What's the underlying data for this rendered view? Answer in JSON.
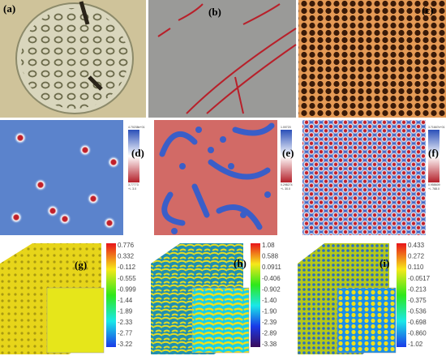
{
  "panels": [
    {
      "label": "(a)"
    },
    {
      "label": "(b)"
    },
    {
      "label": "(c)"
    },
    {
      "label": "(d)",
      "colorbar": [
        "4.70238e+01",
        "3.77773",
        "+/- 3.0"
      ]
    },
    {
      "label": "(e)",
      "colorbar": [
        "1.00720",
        "0.298274",
        "+/- 30.0"
      ]
    },
    {
      "label": "(f)",
      "colorbar": [
        "3.71667e+01",
        "0.958609",
        "+/- 768.0"
      ]
    },
    {
      "label": "(g)",
      "colorbar": [
        "0.776",
        "0.332",
        "-0.112",
        "-0.555",
        "-0.999",
        "-1.44",
        "-1.89",
        "-2.33",
        "-2.77",
        "-3.22"
      ]
    },
    {
      "label": "(h)",
      "colorbar": [
        "1.08",
        "0.588",
        "0.0911",
        "-0.406",
        "-0.902",
        "-1.40",
        "-1.90",
        "-2.39",
        "-2.89",
        "-3.38"
      ]
    },
    {
      "label": "(i)",
      "colorbar": [
        "0.433",
        "0.272",
        "0.110",
        "-0.0517",
        "-0.213",
        "-0.375",
        "-0.536",
        "-0.698",
        "-0.860",
        "-1.02"
      ]
    }
  ]
}
